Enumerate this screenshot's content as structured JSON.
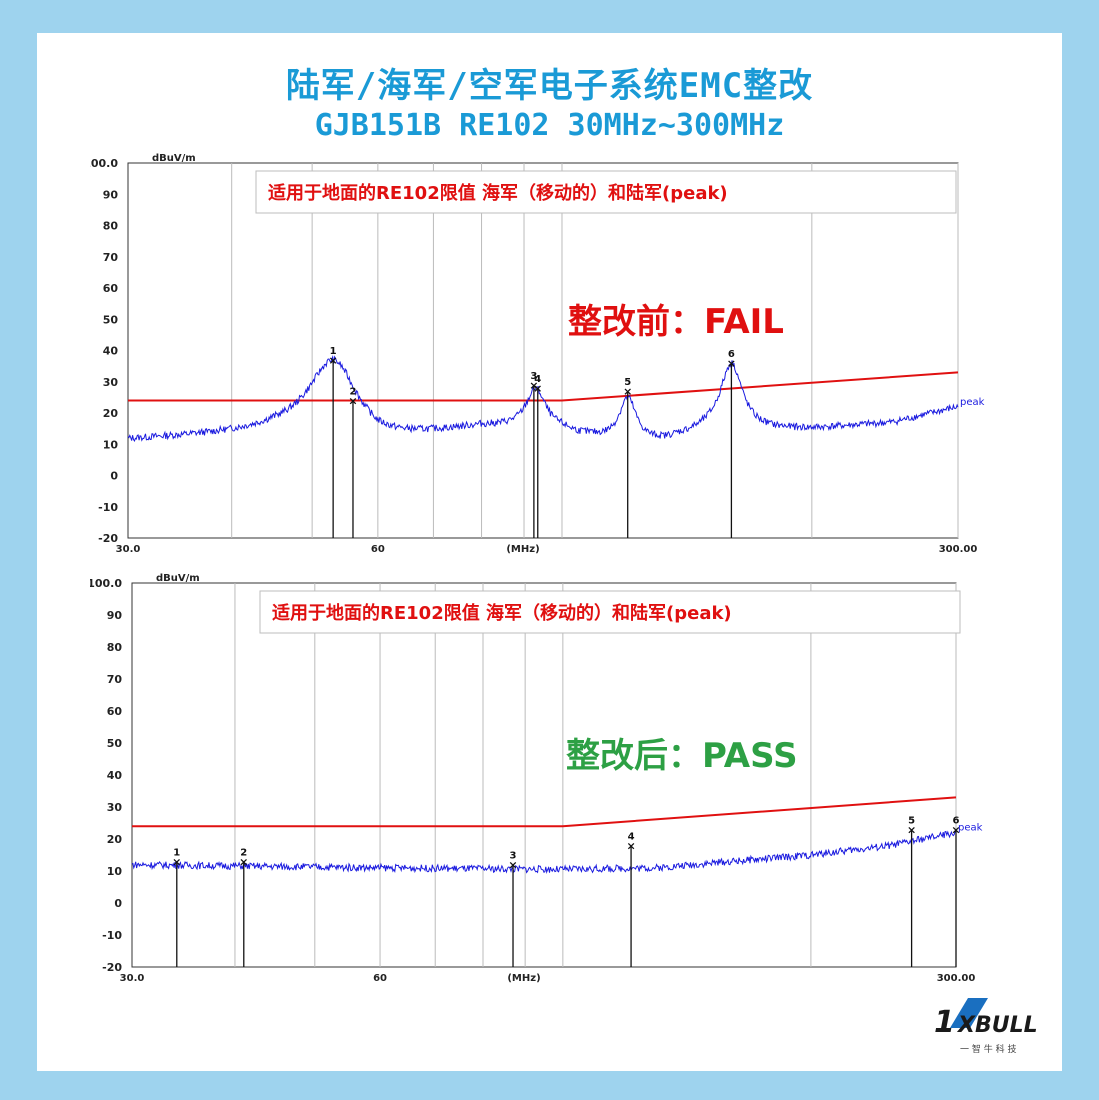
{
  "title": "陆军/海军/空军电子系统EMC整改",
  "subtitle": "GJB151B RE102 30MHz~300MHz",
  "colors": {
    "limit": "#e01010",
    "trace": "#1a1adf",
    "pass_text": "#2da044",
    "fail_text": "#e01010",
    "title": "#1a9ad6"
  },
  "chart_data": [
    {
      "type": "line",
      "title": "适用于地面的RE102限值 海军（移动的）和陆军(peak)",
      "ylabel": "dBuV/m",
      "xlabel": "(MHz)",
      "ylim": [
        -20,
        100
      ],
      "xlim": [
        30,
        300
      ],
      "y_ticks": [
        "100.0",
        "90",
        "80",
        "70",
        "60",
        "50",
        "40",
        "30",
        "20",
        "10",
        "0",
        "-10",
        "-20"
      ],
      "x_tick_labels": [
        "30.0",
        "60",
        "300.00"
      ],
      "status": "整改前：FAIL",
      "series_label": "peak",
      "limit": [
        [
          30,
          24
        ],
        [
          100,
          24
        ],
        [
          300,
          33
        ]
      ],
      "trace_base": [
        [
          30,
          11
        ],
        [
          45,
          13
        ],
        [
          60,
          10.5
        ],
        [
          80,
          16
        ],
        [
          100,
          15
        ],
        [
          120,
          10
        ],
        [
          150,
          14
        ],
        [
          200,
          15
        ],
        [
          250,
          17
        ],
        [
          300,
          22
        ]
      ],
      "peaks": [
        [
          53,
          37,
          4.5
        ],
        [
          93,
          28,
          3.0
        ],
        [
          120,
          25,
          3.5
        ],
        [
          160,
          36,
          6.0
        ]
      ],
      "markers": [
        {
          "label": "1",
          "x": 53,
          "y": 37
        },
        {
          "label": "2",
          "x": 56,
          "y": 24
        },
        {
          "label": "3",
          "x": 92.5,
          "y": 29
        },
        {
          "label": "4",
          "x": 93.5,
          "y": 28
        },
        {
          "label": "5",
          "x": 120,
          "y": 27
        },
        {
          "label": "6",
          "x": 160,
          "y": 36
        }
      ]
    },
    {
      "type": "line",
      "title": "适用于地面的RE102限值 海军（移动的）和陆军(peak)",
      "ylabel": "dBuV/m",
      "xlabel": "(MHz)",
      "ylim": [
        -20,
        100
      ],
      "xlim": [
        30,
        300
      ],
      "y_ticks": [
        "100.0",
        "90",
        "80",
        "70",
        "60",
        "50",
        "40",
        "30",
        "20",
        "10",
        "0",
        "-10",
        "-20"
      ],
      "x_tick_labels": [
        "30.0",
        "60",
        "300.00"
      ],
      "status": "整改后：PASS",
      "series_label": "peak",
      "limit": [
        [
          30,
          24
        ],
        [
          100,
          24
        ],
        [
          300,
          33
        ]
      ],
      "trace_base": [
        [
          30,
          12
        ],
        [
          60,
          11
        ],
        [
          100,
          10.5
        ],
        [
          130,
          11
        ],
        [
          160,
          13
        ],
        [
          200,
          15
        ],
        [
          250,
          18
        ],
        [
          300,
          22
        ]
      ],
      "peaks": [],
      "markers": [
        {
          "label": "1",
          "x": 34,
          "y": 13
        },
        {
          "label": "2",
          "x": 41,
          "y": 13
        },
        {
          "label": "3",
          "x": 87,
          "y": 12
        },
        {
          "label": "4",
          "x": 121,
          "y": 18
        },
        {
          "label": "5",
          "x": 265,
          "y": 23
        },
        {
          "label": "6",
          "x": 300,
          "y": 23
        }
      ]
    }
  ],
  "logo": {
    "text": "1XBULL",
    "tagline": "一智牛科技"
  }
}
